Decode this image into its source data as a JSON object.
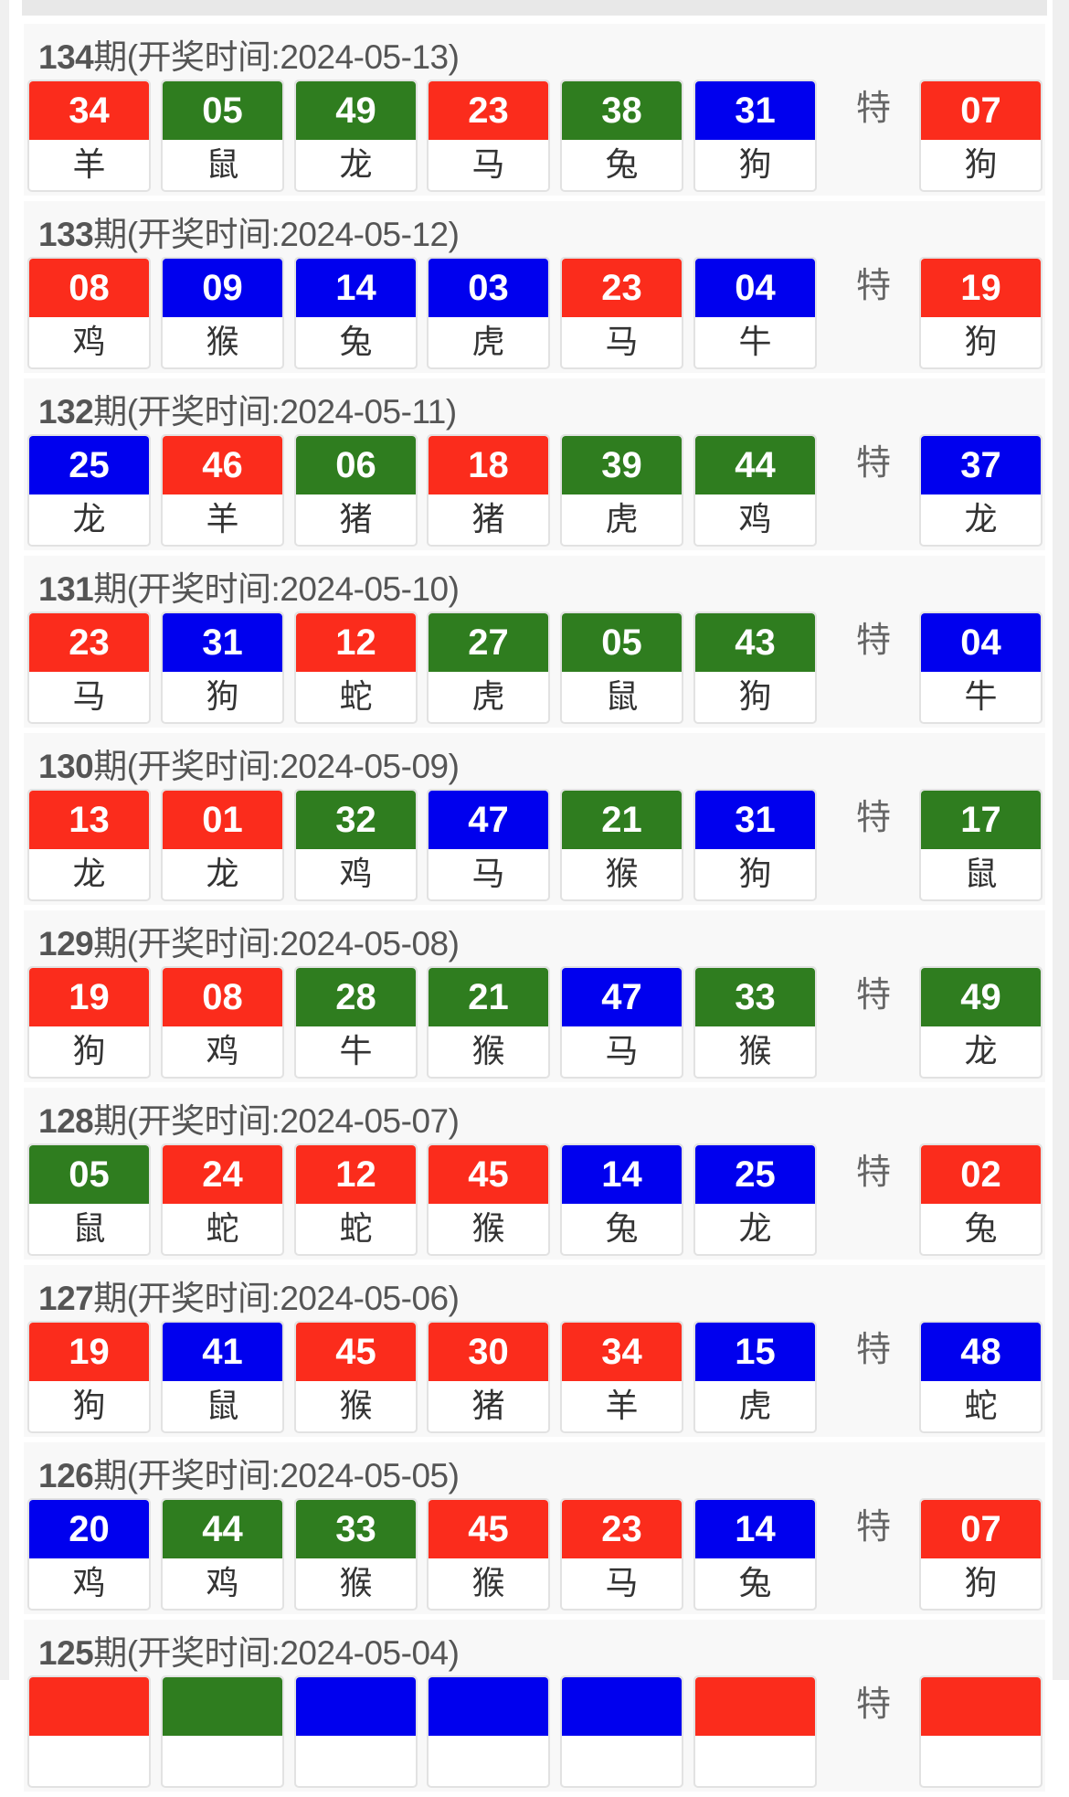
{
  "colors": {
    "red": "#fb2c1c",
    "green": "#2f7d1f",
    "blue": "#0000ee"
  },
  "special_label": "特",
  "draws": [
    {
      "issue": "134",
      "suffix": "期",
      "date_text": "(开奖时间:2024-05-13)",
      "balls": [
        {
          "n": "34",
          "z": "羊",
          "c": "red"
        },
        {
          "n": "05",
          "z": "鼠",
          "c": "green"
        },
        {
          "n": "49",
          "z": "龙",
          "c": "green"
        },
        {
          "n": "23",
          "z": "马",
          "c": "red"
        },
        {
          "n": "38",
          "z": "兔",
          "c": "green"
        },
        {
          "n": "31",
          "z": "狗",
          "c": "blue"
        }
      ],
      "special": {
        "n": "07",
        "z": "狗",
        "c": "red"
      }
    },
    {
      "issue": "133",
      "suffix": "期",
      "date_text": "(开奖时间:2024-05-12)",
      "balls": [
        {
          "n": "08",
          "z": "鸡",
          "c": "red"
        },
        {
          "n": "09",
          "z": "猴",
          "c": "blue"
        },
        {
          "n": "14",
          "z": "兔",
          "c": "blue"
        },
        {
          "n": "03",
          "z": "虎",
          "c": "blue"
        },
        {
          "n": "23",
          "z": "马",
          "c": "red"
        },
        {
          "n": "04",
          "z": "牛",
          "c": "blue"
        }
      ],
      "special": {
        "n": "19",
        "z": "狗",
        "c": "red"
      }
    },
    {
      "issue": "132",
      "suffix": "期",
      "date_text": "(开奖时间:2024-05-11)",
      "balls": [
        {
          "n": "25",
          "z": "龙",
          "c": "blue"
        },
        {
          "n": "46",
          "z": "羊",
          "c": "red"
        },
        {
          "n": "06",
          "z": "猪",
          "c": "green"
        },
        {
          "n": "18",
          "z": "猪",
          "c": "red"
        },
        {
          "n": "39",
          "z": "虎",
          "c": "green"
        },
        {
          "n": "44",
          "z": "鸡",
          "c": "green"
        }
      ],
      "special": {
        "n": "37",
        "z": "龙",
        "c": "blue"
      }
    },
    {
      "issue": "131",
      "suffix": "期",
      "date_text": "(开奖时间:2024-05-10)",
      "balls": [
        {
          "n": "23",
          "z": "马",
          "c": "red"
        },
        {
          "n": "31",
          "z": "狗",
          "c": "blue"
        },
        {
          "n": "12",
          "z": "蛇",
          "c": "red"
        },
        {
          "n": "27",
          "z": "虎",
          "c": "green"
        },
        {
          "n": "05",
          "z": "鼠",
          "c": "green"
        },
        {
          "n": "43",
          "z": "狗",
          "c": "green"
        }
      ],
      "special": {
        "n": "04",
        "z": "牛",
        "c": "blue"
      }
    },
    {
      "issue": "130",
      "suffix": "期",
      "date_text": "(开奖时间:2024-05-09)",
      "balls": [
        {
          "n": "13",
          "z": "龙",
          "c": "red"
        },
        {
          "n": "01",
          "z": "龙",
          "c": "red"
        },
        {
          "n": "32",
          "z": "鸡",
          "c": "green"
        },
        {
          "n": "47",
          "z": "马",
          "c": "blue"
        },
        {
          "n": "21",
          "z": "猴",
          "c": "green"
        },
        {
          "n": "31",
          "z": "狗",
          "c": "blue"
        }
      ],
      "special": {
        "n": "17",
        "z": "鼠",
        "c": "green"
      }
    },
    {
      "issue": "129",
      "suffix": "期",
      "date_text": "(开奖时间:2024-05-08)",
      "balls": [
        {
          "n": "19",
          "z": "狗",
          "c": "red"
        },
        {
          "n": "08",
          "z": "鸡",
          "c": "red"
        },
        {
          "n": "28",
          "z": "牛",
          "c": "green"
        },
        {
          "n": "21",
          "z": "猴",
          "c": "green"
        },
        {
          "n": "47",
          "z": "马",
          "c": "blue"
        },
        {
          "n": "33",
          "z": "猴",
          "c": "green"
        }
      ],
      "special": {
        "n": "49",
        "z": "龙",
        "c": "green"
      }
    },
    {
      "issue": "128",
      "suffix": "期",
      "date_text": "(开奖时间:2024-05-07)",
      "balls": [
        {
          "n": "05",
          "z": "鼠",
          "c": "green"
        },
        {
          "n": "24",
          "z": "蛇",
          "c": "red"
        },
        {
          "n": "12",
          "z": "蛇",
          "c": "red"
        },
        {
          "n": "45",
          "z": "猴",
          "c": "red"
        },
        {
          "n": "14",
          "z": "兔",
          "c": "blue"
        },
        {
          "n": "25",
          "z": "龙",
          "c": "blue"
        }
      ],
      "special": {
        "n": "02",
        "z": "兔",
        "c": "red"
      }
    },
    {
      "issue": "127",
      "suffix": "期",
      "date_text": "(开奖时间:2024-05-06)",
      "balls": [
        {
          "n": "19",
          "z": "狗",
          "c": "red"
        },
        {
          "n": "41",
          "z": "鼠",
          "c": "blue"
        },
        {
          "n": "45",
          "z": "猴",
          "c": "red"
        },
        {
          "n": "30",
          "z": "猪",
          "c": "red"
        },
        {
          "n": "34",
          "z": "羊",
          "c": "red"
        },
        {
          "n": "15",
          "z": "虎",
          "c": "blue"
        }
      ],
      "special": {
        "n": "48",
        "z": "蛇",
        "c": "blue"
      }
    },
    {
      "issue": "126",
      "suffix": "期",
      "date_text": "(开奖时间:2024-05-05)",
      "balls": [
        {
          "n": "20",
          "z": "鸡",
          "c": "blue"
        },
        {
          "n": "44",
          "z": "鸡",
          "c": "green"
        },
        {
          "n": "33",
          "z": "猴",
          "c": "green"
        },
        {
          "n": "45",
          "z": "猴",
          "c": "red"
        },
        {
          "n": "23",
          "z": "马",
          "c": "red"
        },
        {
          "n": "14",
          "z": "兔",
          "c": "blue"
        }
      ],
      "special": {
        "n": "07",
        "z": "狗",
        "c": "red"
      }
    },
    {
      "issue": "125",
      "suffix": "期",
      "date_text": "(开奖时间:2024-05-04)",
      "balls": [
        {
          "c": "red"
        },
        {
          "c": "green"
        },
        {
          "c": "blue"
        },
        {
          "c": "blue"
        },
        {
          "c": "blue"
        },
        {
          "c": "red"
        }
      ],
      "special": {
        "c": "red"
      }
    }
  ]
}
